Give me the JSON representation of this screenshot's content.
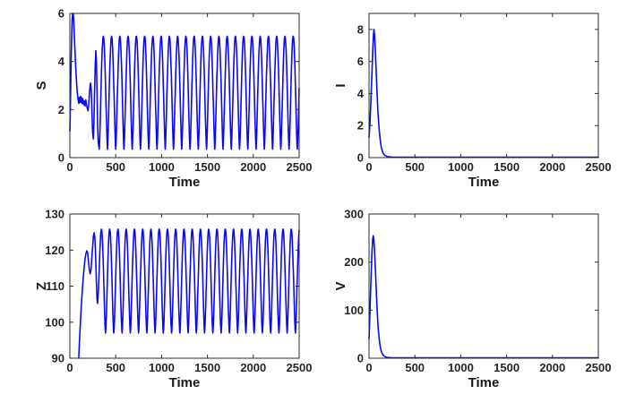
{
  "figure": {
    "background": "#ffffff",
    "line_color": "#0a0af0",
    "axis_color": "#2b2b2b",
    "tick_label_color": "#262626",
    "axis_label_color": "#1a1a1a"
  },
  "chart_data": [
    {
      "id": "S",
      "type": "line",
      "title": "",
      "xlabel": "Time",
      "ylabel": "S",
      "xlim": [
        0,
        2500
      ],
      "ylim": [
        0,
        6
      ],
      "xticks": [
        0,
        500,
        1000,
        1500,
        2000,
        2500
      ],
      "yticks": [
        0,
        2,
        4,
        6
      ],
      "grid": false,
      "legend": null,
      "series": [
        {
          "name": "S(t)",
          "points": [
            [
              0,
              1.1
            ],
            [
              8,
              2.6
            ],
            [
              16,
              4.4
            ],
            [
              24,
              5.7
            ],
            [
              30,
              6.0
            ],
            [
              36,
              6.0
            ],
            [
              42,
              5.7
            ],
            [
              50,
              5.0
            ],
            [
              60,
              4.1
            ],
            [
              70,
              3.3
            ],
            [
              80,
              2.75
            ],
            [
              90,
              2.4
            ],
            [
              98,
              2.25
            ],
            [
              104,
              2.5
            ],
            [
              110,
              2.3
            ],
            [
              116,
              2.55
            ],
            [
              122,
              2.3
            ],
            [
              128,
              2.5
            ],
            [
              135,
              2.25
            ],
            [
              142,
              2.45
            ],
            [
              150,
              2.2
            ],
            [
              158,
              2.35
            ],
            [
              166,
              2.15
            ],
            [
              174,
              2.4
            ],
            [
              182,
              2.2
            ],
            [
              190,
              2.05
            ],
            [
              198,
              1.95
            ],
            [
              206,
              2.2
            ],
            [
              214,
              2.7
            ],
            [
              222,
              3.05
            ],
            [
              228,
              3.1
            ],
            [
              235,
              2.6
            ],
            [
              242,
              1.7
            ],
            [
              249,
              1.0
            ],
            [
              256,
              0.78
            ],
            [
              263,
              1.5
            ],
            [
              270,
              2.8
            ],
            [
              277,
              3.9
            ],
            [
              283,
              4.45
            ],
            [
              289,
              4.1
            ],
            [
              296,
              2.8
            ],
            [
              303,
              1.3
            ],
            [
              310,
              0.65
            ],
            [
              316,
              0.45
            ],
            [
              320,
              0.38
            ]
          ],
          "oscillation": {
            "from": 320,
            "to": 2500,
            "min": 0.35,
            "max": 5.05,
            "period": 90,
            "phase_peak": 365,
            "sharpness": 0.7
          }
        }
      ]
    },
    {
      "id": "I",
      "type": "line",
      "title": "",
      "xlabel": "Time",
      "ylabel": "I",
      "xlim": [
        0,
        2500
      ],
      "ylim": [
        0,
        9
      ],
      "xticks": [
        0,
        500,
        1000,
        1500,
        2000,
        2500
      ],
      "yticks": [
        0,
        2,
        4,
        6,
        8
      ],
      "grid": false,
      "legend": null,
      "series": [
        {
          "name": "I(t)",
          "points": [
            [
              0,
              1.25
            ],
            [
              10,
              2.1
            ],
            [
              20,
              3.4
            ],
            [
              30,
              5.0
            ],
            [
              40,
              6.6
            ],
            [
              48,
              7.6
            ],
            [
              54,
              8.0
            ],
            [
              60,
              7.7
            ],
            [
              68,
              6.8
            ],
            [
              78,
              5.4
            ],
            [
              88,
              4.0
            ],
            [
              98,
              2.8
            ],
            [
              110,
              1.8
            ],
            [
              122,
              1.1
            ],
            [
              135,
              0.6
            ],
            [
              150,
              0.32
            ],
            [
              170,
              0.15
            ],
            [
              200,
              0.06
            ],
            [
              260,
              0.03
            ],
            [
              2500,
              0.03
            ]
          ]
        }
      ]
    },
    {
      "id": "Z",
      "type": "line",
      "title": "",
      "xlabel": "Time",
      "ylabel": "Z",
      "xlim": [
        0,
        2500
      ],
      "ylim": [
        90,
        130
      ],
      "xticks": [
        0,
        500,
        1000,
        1500,
        2000,
        2500
      ],
      "yticks": [
        90,
        100,
        110,
        120,
        130
      ],
      "grid": false,
      "legend": null,
      "series": [
        {
          "name": "Z(t)",
          "points": [
            [
              97,
              90
            ],
            [
              105,
              95
            ],
            [
              115,
              100
            ],
            [
              125,
              104.5
            ],
            [
              135,
              108.5
            ],
            [
              145,
              112
            ],
            [
              155,
              115
            ],
            [
              165,
              117.5
            ],
            [
              175,
              119
            ],
            [
              185,
              119.8
            ],
            [
              193,
              119.3
            ],
            [
              202,
              117
            ],
            [
              212,
              114.5
            ],
            [
              222,
              113.4
            ],
            [
              230,
              114.5
            ],
            [
              240,
              118
            ],
            [
              250,
              121.5
            ],
            [
              258,
              124
            ],
            [
              265,
              124.8
            ],
            [
              272,
              123.5
            ],
            [
              280,
              119
            ],
            [
              288,
              112
            ],
            [
              296,
              106.5
            ],
            [
              302,
              105.2
            ],
            [
              308,
              107
            ],
            [
              316,
              112
            ],
            [
              326,
              119
            ],
            [
              336,
              124.5
            ],
            [
              344,
              125.8
            ]
          ],
          "oscillation": {
            "from": 344,
            "to": 2500,
            "min": 97,
            "max": 125.8,
            "period": 90,
            "phase_peak": 344,
            "sharpness": 0.75
          }
        }
      ]
    },
    {
      "id": "V",
      "type": "line",
      "title": "",
      "xlabel": "Time",
      "ylabel": "V",
      "xlim": [
        0,
        2500
      ],
      "ylim": [
        0,
        300
      ],
      "xticks": [
        0,
        500,
        1000,
        1500,
        2000,
        2500
      ],
      "yticks": [
        0,
        100,
        200,
        300
      ],
      "grid": false,
      "legend": null,
      "series": [
        {
          "name": "V(t)",
          "points": [
            [
              0,
              40
            ],
            [
              8,
              80
            ],
            [
              16,
              130
            ],
            [
              24,
              180
            ],
            [
              32,
              222
            ],
            [
              40,
              248
            ],
            [
              46,
              255
            ],
            [
              52,
              248
            ],
            [
              60,
              225
            ],
            [
              70,
              182
            ],
            [
              80,
              135
            ],
            [
              90,
              95
            ],
            [
              100,
              63
            ],
            [
              112,
              38
            ],
            [
              124,
              22
            ],
            [
              138,
              12
            ],
            [
              155,
              6
            ],
            [
              175,
              3
            ],
            [
              200,
              1.5
            ],
            [
              260,
              0.8
            ],
            [
              2500,
              0.8
            ]
          ]
        }
      ]
    }
  ]
}
